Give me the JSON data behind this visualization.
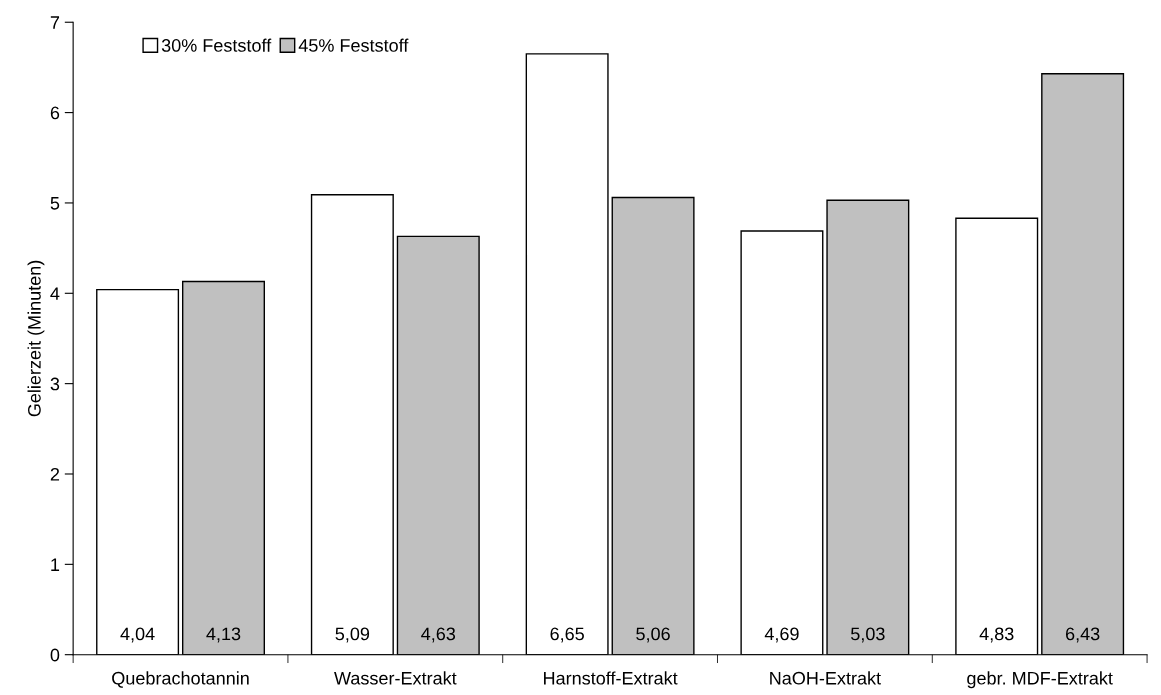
{
  "chart_data": {
    "type": "bar",
    "ylabel": "Gelierzeit (Minuten)",
    "categories": [
      "Quebrachotannin",
      "Wasser-Extrakt",
      "Harnstoff-Extrakt",
      "NaOH-Extrakt",
      "gebr. MDF-Extrakt"
    ],
    "series": [
      {
        "name": "30% Feststoff",
        "color": "#ffffff",
        "values": [
          4.04,
          5.09,
          6.65,
          4.69,
          4.83
        ],
        "value_labels": [
          "4,04",
          "5,09",
          "6,65",
          "4,69",
          "4,83"
        ]
      },
      {
        "name": "45% Feststoff",
        "color": "#c0c0c0",
        "values": [
          4.13,
          4.63,
          5.06,
          5.03,
          6.43
        ],
        "value_labels": [
          "4,13",
          "4,63",
          "5,06",
          "5,03",
          "6,43"
        ]
      }
    ],
    "ylim": [
      0,
      7
    ],
    "yticks": [
      0,
      1,
      2,
      3,
      4,
      5,
      6,
      7
    ],
    "grid": false,
    "legend": "top left"
  }
}
